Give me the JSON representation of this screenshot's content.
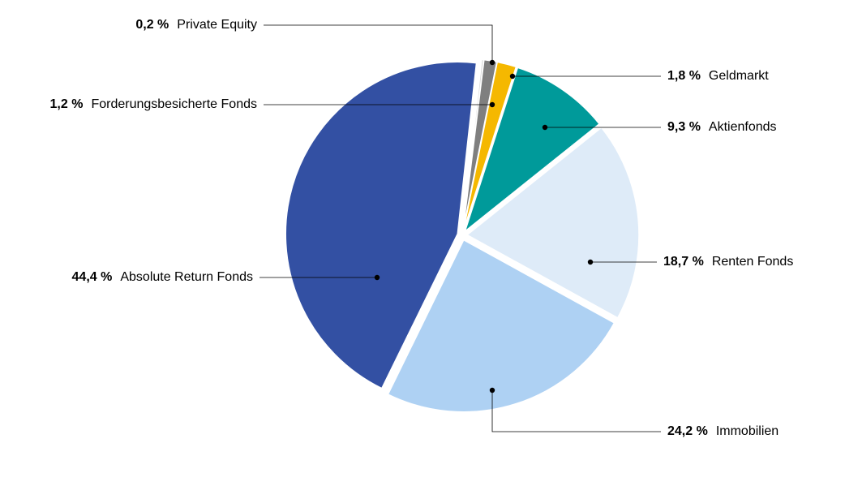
{
  "chart_data": {
    "type": "pie",
    "categories": [
      "Private Equity",
      "Forderungsbesicherte Fonds",
      "Geldmarkt",
      "Aktienfonds",
      "Renten Fonds",
      "Immobilien",
      "Absolute Return Fonds"
    ],
    "values": [
      0.2,
      1.2,
      1.8,
      9.3,
      18.7,
      24.2,
      44.4
    ],
    "value_labels": [
      "0,2 %",
      "1,2 %",
      "1,8 %",
      "9,3 %",
      "18,7 %",
      "24,2 %",
      "44,4 %"
    ],
    "colors": [
      "#d9d9d9",
      "#7f7f7f",
      "#f5b800",
      "#009a9a",
      "#deebf8",
      "#aed1f3",
      "#3350a3"
    ]
  }
}
